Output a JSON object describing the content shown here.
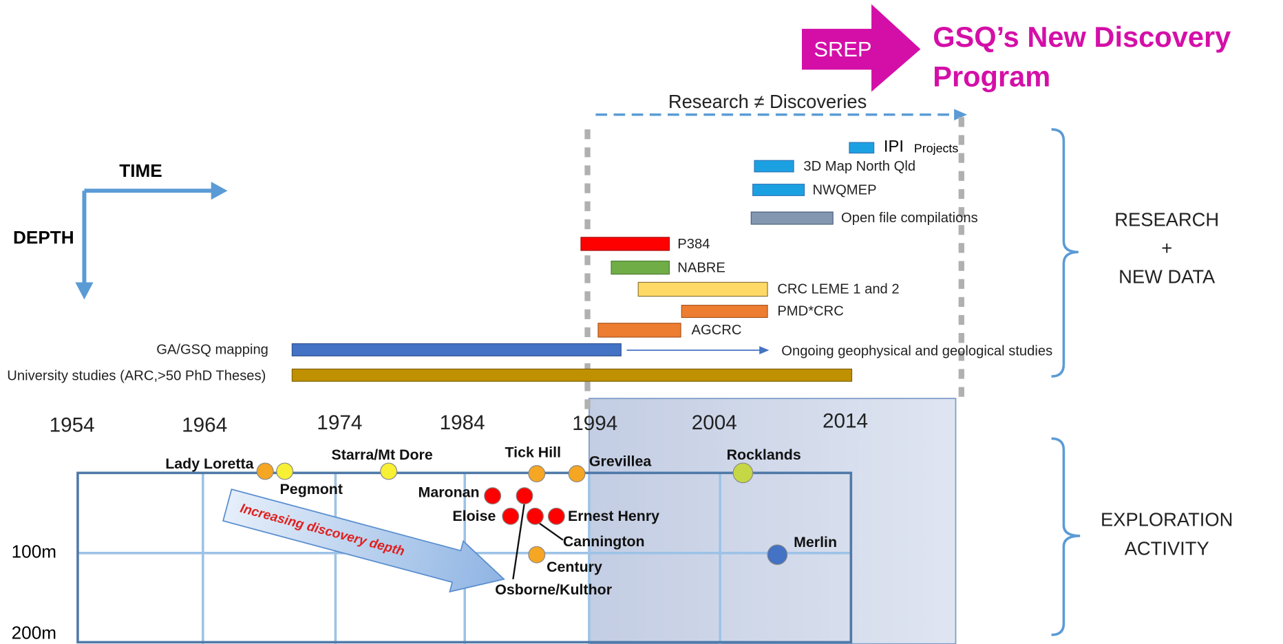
{
  "header": {
    "badge": "SREP",
    "title_line1": "GSQ’s New Discovery",
    "title_line2": "Program"
  },
  "research_note": "Research ≠ Discoveries",
  "axes": {
    "time": "TIME",
    "depth": "DEPTH"
  },
  "projects": [
    {
      "label": "IPI",
      "note": "Projects"
    },
    {
      "label": "3D Map North Qld"
    },
    {
      "label": "NWQMEP"
    },
    {
      "label": "Open file compilations"
    },
    {
      "label": "P384"
    },
    {
      "label": "NABRE"
    },
    {
      "label": "CRC LEME 1 and 2"
    },
    {
      "label": "PMD*CRC"
    },
    {
      "label": "AGCRC"
    },
    {
      "label": "GA/GSQ mapping",
      "note": "Ongoing geophysical and geological studies"
    },
    {
      "label": "University studies (ARC,>50 PhD Theses)"
    }
  ],
  "years": [
    "1954",
    "1964",
    "1974",
    "1984",
    "1994",
    "2004",
    "2014"
  ],
  "depths": [
    "100m",
    "200m"
  ],
  "deposits": [
    "Lady Loretta",
    "Pegmont",
    "Starra/Mt Dore",
    "Tick Hill",
    "Grevillea",
    "Rocklands",
    "Maronan",
    "Osborne/Kulthor",
    "Eloise",
    "Cannington",
    "Ernest Henry",
    "Century",
    "Merlin"
  ],
  "trend_label": "Increasing discovery depth",
  "side_labels": {
    "research": [
      "RESEARCH",
      "+",
      "NEW DATA"
    ],
    "exploration": [
      "EXPLORATION",
      "ACTIVITY"
    ]
  }
}
